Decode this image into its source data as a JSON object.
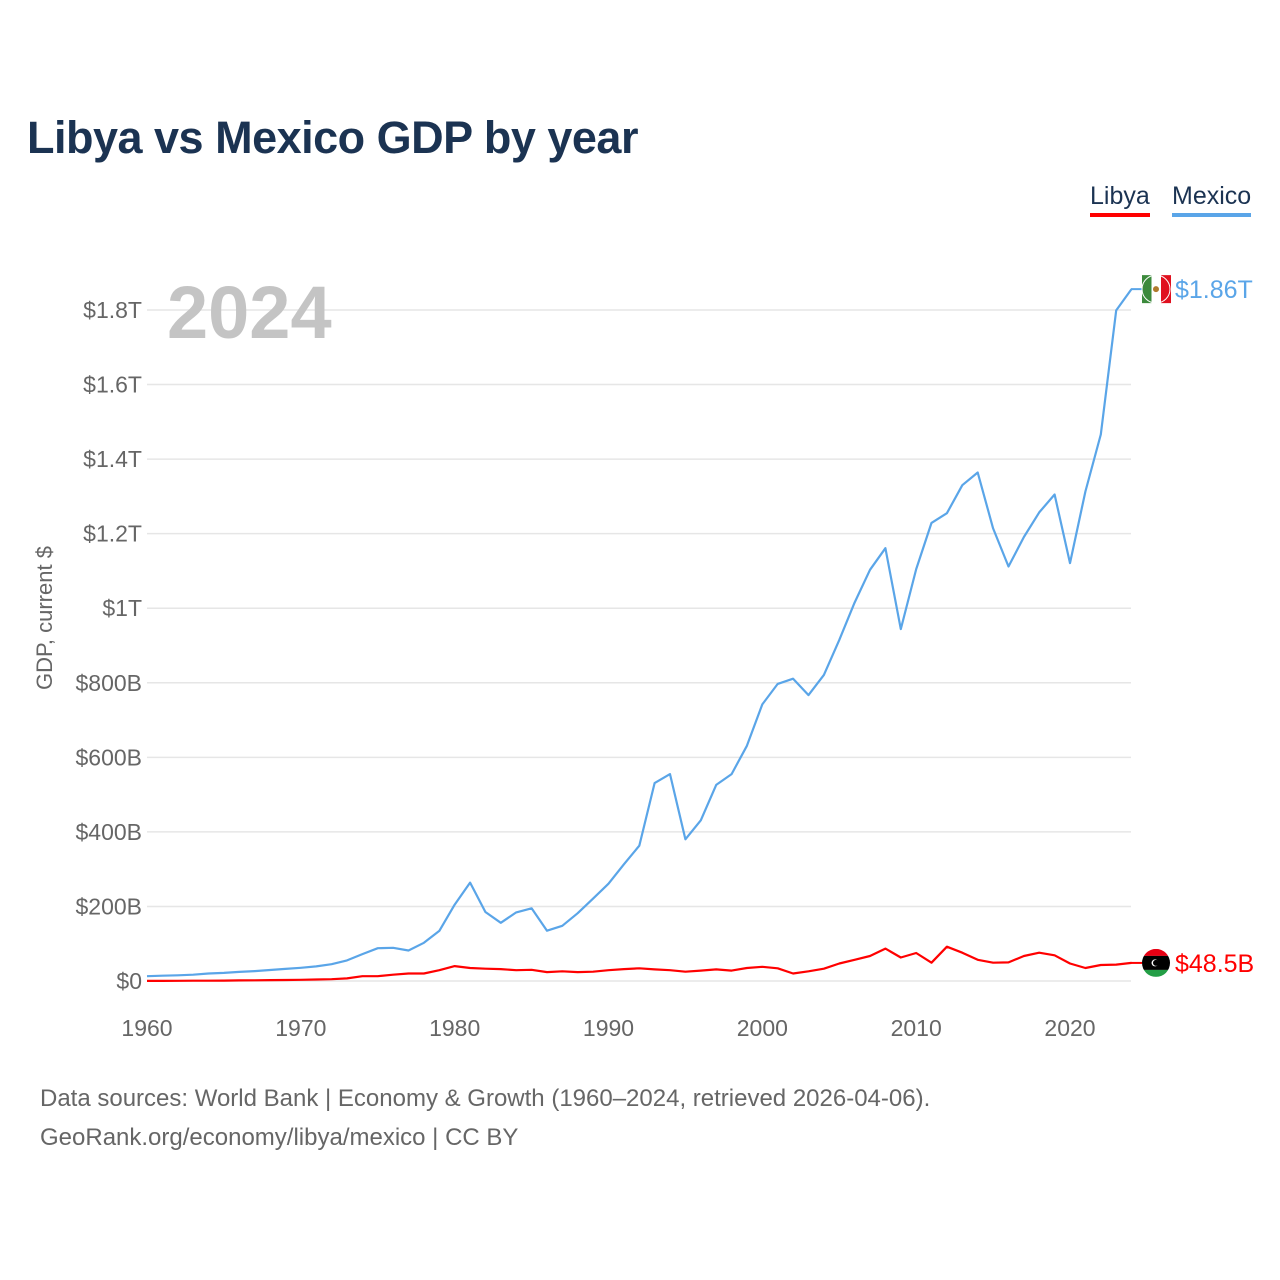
{
  "title": "Libya vs Mexico GDP by year",
  "legend": {
    "libya": "Libya",
    "mexico": "Mexico"
  },
  "colors": {
    "libya": "#ff0000",
    "mexico": "#5aa5e8",
    "title": "#1b3352"
  },
  "year_watermark": "2024",
  "end_labels": {
    "mexico": "$1.86T",
    "libya": "$48.5B"
  },
  "footer": {
    "line1": "Data sources: World Bank | Economy & Growth (1960–2024, retrieved 2026-04-06).",
    "line2": "GeoRank.org/economy/libya/mexico | CC BY"
  },
  "chart_data": {
    "type": "line",
    "title": "Libya vs Mexico GDP by year",
    "xlabel": "",
    "ylabel": "GDP, current $",
    "units": "billions USD",
    "xlim": [
      1960,
      2024
    ],
    "ylim": [
      0,
      1900
    ],
    "x_ticks": [
      1960,
      1970,
      1980,
      1990,
      2000,
      2010,
      2020
    ],
    "y_ticks": [
      0,
      200,
      400,
      600,
      800,
      1000,
      1200,
      1400,
      1600,
      1800
    ],
    "y_tick_labels": [
      "$0",
      "$200B",
      "$400B",
      "$600B",
      "$800B",
      "$1T",
      "$1.2T",
      "$1.4T",
      "$1.6T",
      "$1.8T"
    ],
    "grid": true,
    "legend_position": "top-right",
    "x": [
      1960,
      1961,
      1962,
      1963,
      1964,
      1965,
      1966,
      1967,
      1968,
      1969,
      1970,
      1971,
      1972,
      1973,
      1974,
      1975,
      1976,
      1977,
      1978,
      1979,
      1980,
      1981,
      1982,
      1983,
      1984,
      1985,
      1986,
      1987,
      1988,
      1989,
      1990,
      1991,
      1992,
      1993,
      1994,
      1995,
      1996,
      1997,
      1998,
      1999,
      2000,
      2001,
      2002,
      2003,
      2004,
      2005,
      2006,
      2007,
      2008,
      2009,
      2010,
      2011,
      2012,
      2013,
      2014,
      2015,
      2016,
      2017,
      2018,
      2019,
      2020,
      2021,
      2022,
      2023,
      2024
    ],
    "series": [
      {
        "name": "Mexico",
        "values": [
          13,
          14.2,
          15.2,
          17,
          20.1,
          21.8,
          24.3,
          26.6,
          29.4,
          32.5,
          35.5,
          39.2,
          45.2,
          55.3,
          72.2,
          88,
          89,
          81.7,
          102.5,
          134.5,
          205,
          264,
          185,
          156,
          184,
          195,
          135,
          148,
          182,
          221,
          261,
          313,
          363,
          531,
          555,
          380,
          431,
          526,
          555,
          631,
          742,
          797,
          811,
          767,
          821,
          915,
          1015,
          1103,
          1161,
          944,
          1105,
          1229,
          1255,
          1330,
          1364,
          1214,
          1112,
          1191,
          1257,
          1305,
          1121,
          1313,
          1466,
          1799,
          1856
        ]
      },
      {
        "name": "Libya",
        "values": [
          0.3,
          0.4,
          0.5,
          0.7,
          0.9,
          1.2,
          1.5,
          1.8,
          2.3,
          2.8,
          3.3,
          4,
          4.8,
          7,
          13,
          13,
          17,
          20,
          20,
          29,
          40,
          35,
          33,
          32,
          29,
          30,
          24,
          26,
          24,
          25,
          29,
          32,
          34,
          31,
          29,
          25,
          28,
          31,
          28,
          35,
          38,
          34,
          20,
          26,
          33,
          47,
          57,
          67,
          87,
          63,
          75,
          49,
          92,
          76,
          57,
          49,
          50,
          67,
          76,
          69,
          47,
          35,
          43,
          44,
          48.5
        ]
      }
    ]
  }
}
